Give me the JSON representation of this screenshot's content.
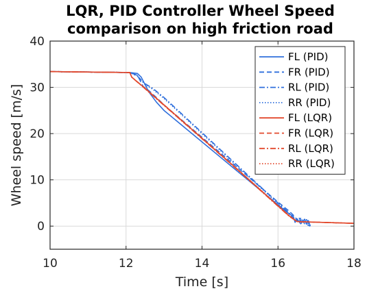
{
  "chart_data": {
    "type": "line",
    "title_lines": [
      "LQR, PID Controller Wheel Speed",
      "comparison on high friction road"
    ],
    "xlabel": "Time [s]",
    "ylabel": "Wheel speed [m/s]",
    "xlim": [
      10,
      18
    ],
    "ylim": [
      -5,
      40
    ],
    "xticks": [
      10,
      12,
      14,
      16,
      18
    ],
    "yticks": [
      0,
      10,
      20,
      30,
      40
    ],
    "grid": true,
    "legend_position": "top-right",
    "series": [
      {
        "name": "FL (PID)",
        "color": "#2f6fdc",
        "dash": "solid",
        "x": [
          10,
          12.1,
          12.3,
          12.4,
          12.6,
          12.8,
          13.0,
          14.0,
          15.0,
          16.0,
          16.3,
          16.4,
          16.45,
          16.5,
          16.55,
          16.6,
          16.7,
          16.75,
          16.8,
          16.85
        ],
        "y": [
          33.4,
          33.2,
          33.0,
          32.2,
          29.0,
          26.8,
          25.0,
          18.2,
          11.4,
          4.6,
          2.6,
          2.2,
          0.8,
          1.6,
          1.0,
          0.5,
          1.5,
          0.4,
          1.2,
          0.0
        ]
      },
      {
        "name": "FR (PID)",
        "color": "#2f6fdc",
        "dash": "dashed",
        "x": [
          10,
          12.1,
          12.3,
          12.45,
          12.6,
          12.8,
          13.0,
          14.0,
          15.0,
          16.0,
          16.3,
          16.45,
          16.55,
          16.6,
          16.7,
          16.85
        ],
        "y": [
          33.4,
          33.2,
          32.6,
          30.2,
          29.3,
          27.8,
          26.2,
          19.2,
          12.2,
          5.2,
          3.2,
          2.0,
          0.6,
          1.8,
          0.5,
          0.0
        ]
      },
      {
        "name": "RL (PID)",
        "color": "#2f6fdc",
        "dash": "dashdot",
        "x": [
          10,
          12.1,
          12.3,
          12.5,
          12.7,
          13.0,
          14.0,
          15.0,
          16.0,
          16.3,
          16.45,
          16.55,
          16.65,
          16.75,
          16.85
        ],
        "y": [
          33.4,
          33.2,
          32.4,
          30.8,
          29.8,
          27.8,
          20.2,
          12.6,
          5.0,
          2.8,
          1.2,
          1.8,
          0.6,
          1.4,
          0.2
        ]
      },
      {
        "name": "RR (PID)",
        "color": "#2f6fdc",
        "dash": "dotted",
        "x": [
          10,
          12.1,
          12.3,
          12.5,
          12.7,
          13.0,
          14.0,
          15.0,
          16.0,
          16.3,
          16.45,
          16.55,
          16.65,
          16.85
        ],
        "y": [
          33.4,
          33.2,
          32.5,
          30.6,
          29.6,
          27.6,
          20.0,
          12.4,
          4.8,
          2.6,
          1.4,
          0.8,
          1.5,
          0.1
        ]
      },
      {
        "name": "FL (LQR)",
        "color": "#e2482c",
        "dash": "solid",
        "x": [
          10,
          12.1,
          12.15,
          12.5,
          13.0,
          14.0,
          15.0,
          16.0,
          16.3,
          16.5,
          16.6,
          16.8,
          18.0
        ],
        "y": [
          33.4,
          33.2,
          32.2,
          29.8,
          26.2,
          19.0,
          11.8,
          4.4,
          2.2,
          1.0,
          0.9,
          0.9,
          0.6
        ]
      },
      {
        "name": "FR (LQR)",
        "color": "#e2482c",
        "dash": "dashed",
        "x": [
          10,
          12.1,
          12.15,
          12.5,
          13.0,
          14.0,
          15.0,
          16.0,
          16.3,
          16.5,
          16.8,
          18.0
        ],
        "y": [
          33.4,
          33.2,
          32.2,
          29.8,
          26.2,
          19.0,
          11.8,
          4.4,
          2.2,
          1.0,
          0.9,
          0.6
        ]
      },
      {
        "name": "RL (LQR)",
        "color": "#e2482c",
        "dash": "dashdot",
        "x": [
          10,
          12.1,
          12.15,
          12.5,
          13.0,
          14.0,
          15.0,
          16.0,
          16.3,
          16.5,
          16.8,
          18.0
        ],
        "y": [
          33.4,
          33.2,
          32.2,
          29.7,
          26.1,
          18.9,
          11.7,
          4.3,
          2.1,
          1.0,
          0.9,
          0.6
        ]
      },
      {
        "name": "RR (LQR)",
        "color": "#e2482c",
        "dash": "dotted",
        "x": [
          10,
          12.1,
          12.15,
          12.5,
          13.0,
          14.0,
          15.0,
          16.0,
          16.3,
          16.5,
          16.8,
          18.0
        ],
        "y": [
          33.4,
          33.2,
          32.2,
          29.7,
          26.1,
          18.9,
          11.7,
          4.3,
          2.1,
          1.0,
          0.9,
          0.6
        ]
      }
    ]
  }
}
